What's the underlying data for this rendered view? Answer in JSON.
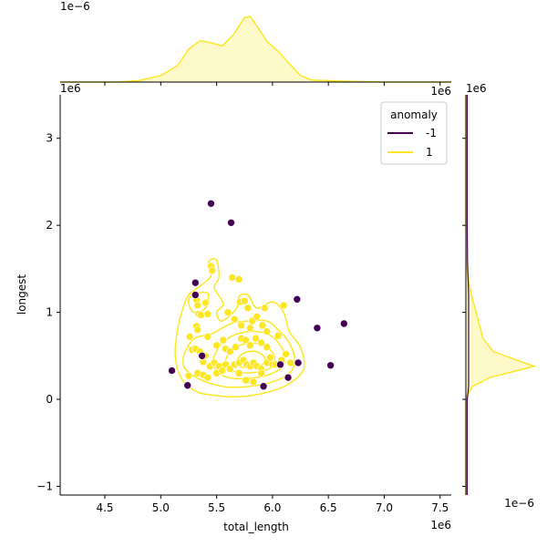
{
  "chart_data": {
    "type": "scatter",
    "title": "",
    "xlabel": "total_length",
    "ylabel": "longest",
    "x_offset_label": "1e6",
    "y_offset_label": "1e6",
    "xlim": [
      4.1,
      7.6
    ],
    "ylim": [
      -1.1,
      3.5
    ],
    "xticks": [
      "4.5",
      "5.0",
      "5.5",
      "6.0",
      "6.5",
      "7.0",
      "7.5"
    ],
    "yticks": [
      "−1",
      "0",
      "1",
      "2",
      "3"
    ],
    "top_marginal": {
      "type": "kde",
      "offset_label": "1e−6",
      "axis_offset_label": "1e6",
      "curve": [
        [
          4.1,
          0
        ],
        [
          4.6,
          0
        ],
        [
          4.8,
          0.02
        ],
        [
          5.0,
          0.1
        ],
        [
          5.15,
          0.25
        ],
        [
          5.25,
          0.5
        ],
        [
          5.35,
          0.63
        ],
        [
          5.45,
          0.6
        ],
        [
          5.55,
          0.55
        ],
        [
          5.65,
          0.72
        ],
        [
          5.75,
          0.98
        ],
        [
          5.8,
          1.0
        ],
        [
          5.85,
          0.88
        ],
        [
          5.95,
          0.62
        ],
        [
          6.05,
          0.47
        ],
        [
          6.15,
          0.28
        ],
        [
          6.25,
          0.1
        ],
        [
          6.35,
          0.03
        ],
        [
          6.5,
          0.02
        ],
        [
          6.7,
          0.01
        ],
        [
          7.0,
          0
        ],
        [
          7.6,
          0
        ]
      ]
    },
    "right_marginal": {
      "type": "kde",
      "offset_label": "1e6",
      "axis_offset_label": "1e−6",
      "curve": [
        [
          -1.1,
          0
        ],
        [
          0.0,
          0
        ],
        [
          0.05,
          0.02
        ],
        [
          0.15,
          0.1
        ],
        [
          0.25,
          0.35
        ],
        [
          0.32,
          0.7
        ],
        [
          0.38,
          1.0
        ],
        [
          0.45,
          0.75
        ],
        [
          0.55,
          0.4
        ],
        [
          0.7,
          0.25
        ],
        [
          0.85,
          0.2
        ],
        [
          1.0,
          0.15
        ],
        [
          1.2,
          0.08
        ],
        [
          1.4,
          0.03
        ],
        [
          1.6,
          0.01
        ],
        [
          2.0,
          0
        ],
        [
          3.5,
          0
        ]
      ]
    },
    "legend": {
      "title": "anomaly",
      "position": "top-right",
      "items": [
        {
          "label": "-1",
          "color": "#440154"
        },
        {
          "label": "1",
          "color": "#fde725"
        }
      ]
    },
    "series": [
      {
        "name": "-1",
        "color": "#440154",
        "points": [
          [
            5.45,
            2.25
          ],
          [
            5.63,
            2.03
          ],
          [
            5.31,
            1.34
          ],
          [
            5.31,
            1.2
          ],
          [
            6.22,
            1.15
          ],
          [
            6.4,
            0.82
          ],
          [
            6.64,
            0.87
          ],
          [
            5.1,
            0.33
          ],
          [
            5.24,
            0.16
          ],
          [
            5.92,
            0.15
          ],
          [
            6.14,
            0.25
          ],
          [
            6.23,
            0.42
          ],
          [
            6.52,
            0.39
          ],
          [
            6.07,
            0.4
          ],
          [
            5.37,
            0.5
          ]
        ]
      },
      {
        "name": "1",
        "color": "#fde725",
        "points": [
          [
            5.45,
            1.53
          ],
          [
            5.46,
            1.48
          ],
          [
            5.32,
            1.14
          ],
          [
            5.33,
            1.08
          ],
          [
            5.34,
            0.98
          ],
          [
            5.36,
            0.97
          ],
          [
            5.4,
            1.11
          ],
          [
            5.42,
            0.98
          ],
          [
            5.64,
            1.4
          ],
          [
            5.7,
            1.38
          ],
          [
            5.71,
            1.12
          ],
          [
            5.75,
            1.13
          ],
          [
            5.78,
            1.05
          ],
          [
            5.82,
            0.9
          ],
          [
            5.86,
            0.95
          ],
          [
            5.93,
            1.05
          ],
          [
            6.1,
            1.08
          ],
          [
            5.6,
            1.0
          ],
          [
            5.66,
            0.92
          ],
          [
            5.72,
            0.85
          ],
          [
            5.8,
            0.82
          ],
          [
            5.91,
            0.85
          ],
          [
            5.95,
            0.78
          ],
          [
            6.05,
            0.73
          ],
          [
            5.32,
            0.84
          ],
          [
            5.33,
            0.8
          ],
          [
            5.26,
            0.72
          ],
          [
            5.42,
            0.72
          ],
          [
            5.5,
            0.62
          ],
          [
            5.56,
            0.68
          ],
          [
            5.58,
            0.58
          ],
          [
            5.62,
            0.55
          ],
          [
            5.67,
            0.6
          ],
          [
            5.72,
            0.7
          ],
          [
            5.76,
            0.68
          ],
          [
            5.8,
            0.62
          ],
          [
            5.85,
            0.7
          ],
          [
            5.9,
            0.65
          ],
          [
            5.95,
            0.6
          ],
          [
            5.28,
            0.57
          ],
          [
            5.31,
            0.58
          ],
          [
            5.35,
            0.55
          ],
          [
            5.38,
            0.43
          ],
          [
            5.4,
            0.5
          ],
          [
            5.44,
            0.38
          ],
          [
            5.48,
            0.42
          ],
          [
            5.52,
            0.38
          ],
          [
            5.54,
            0.32
          ],
          [
            5.58,
            0.4
          ],
          [
            5.62,
            0.35
          ],
          [
            5.66,
            0.4
          ],
          [
            5.7,
            0.42
          ],
          [
            5.74,
            0.45
          ],
          [
            5.77,
            0.4
          ],
          [
            5.8,
            0.38
          ],
          [
            5.83,
            0.42
          ],
          [
            5.86,
            0.38
          ],
          [
            5.9,
            0.35
          ],
          [
            5.95,
            0.42
          ],
          [
            5.98,
            0.48
          ],
          [
            6.0,
            0.4
          ],
          [
            6.03,
            0.4
          ],
          [
            6.08,
            0.45
          ],
          [
            6.12,
            0.52
          ],
          [
            6.16,
            0.42
          ],
          [
            5.25,
            0.27
          ],
          [
            5.33,
            0.3
          ],
          [
            5.38,
            0.28
          ],
          [
            5.42,
            0.25
          ],
          [
            5.5,
            0.3
          ],
          [
            5.55,
            0.33
          ],
          [
            5.7,
            0.3
          ],
          [
            5.78,
            0.22
          ],
          [
            5.83,
            0.2
          ],
          [
            5.76,
            0.22
          ],
          [
            5.9,
            0.3
          ]
        ]
      }
    ],
    "kde_contours": [
      [
        [
          5.25,
          1.2
        ],
        [
          5.35,
          1.3
        ],
        [
          5.45,
          1.42
        ],
        [
          5.43,
          1.58
        ],
        [
          5.5,
          1.6
        ],
        [
          5.52,
          1.4
        ],
        [
          5.48,
          1.28
        ],
        [
          5.56,
          1.1
        ],
        [
          5.5,
          1.0
        ],
        [
          5.55,
          0.9
        ],
        [
          5.68,
          1.05
        ],
        [
          5.7,
          1.18
        ],
        [
          5.78,
          1.2
        ],
        [
          5.86,
          1.05
        ],
        [
          6.0,
          1.12
        ],
        [
          6.1,
          1.0
        ],
        [
          6.15,
          0.78
        ],
        [
          6.25,
          0.6
        ],
        [
          6.28,
          0.35
        ],
        [
          6.15,
          0.18
        ],
        [
          5.95,
          0.08
        ],
        [
          5.7,
          0.03
        ],
        [
          5.45,
          0.05
        ],
        [
          5.3,
          0.1
        ],
        [
          5.18,
          0.25
        ],
        [
          5.13,
          0.5
        ],
        [
          5.15,
          0.8
        ],
        [
          5.2,
          1.05
        ]
      ],
      [
        [
          5.22,
          0.55
        ],
        [
          5.3,
          0.7
        ],
        [
          5.45,
          0.75
        ],
        [
          5.55,
          0.82
        ],
        [
          5.65,
          0.88
        ],
        [
          5.8,
          0.9
        ],
        [
          5.95,
          0.9
        ],
        [
          6.05,
          0.8
        ],
        [
          6.15,
          0.65
        ],
        [
          6.2,
          0.45
        ],
        [
          6.15,
          0.3
        ],
        [
          6.0,
          0.2
        ],
        [
          5.8,
          0.15
        ],
        [
          5.6,
          0.14
        ],
        [
          5.45,
          0.18
        ],
        [
          5.32,
          0.25
        ],
        [
          5.22,
          0.35
        ],
        [
          5.2,
          0.45
        ]
      ],
      [
        [
          5.48,
          0.5
        ],
        [
          5.55,
          0.65
        ],
        [
          5.68,
          0.75
        ],
        [
          5.85,
          0.78
        ],
        [
          6.0,
          0.72
        ],
        [
          6.1,
          0.55
        ],
        [
          6.1,
          0.4
        ],
        [
          6.0,
          0.3
        ],
        [
          5.85,
          0.25
        ],
        [
          5.65,
          0.24
        ],
        [
          5.52,
          0.3
        ],
        [
          5.47,
          0.4
        ]
      ],
      [
        [
          5.58,
          0.45
        ],
        [
          5.65,
          0.58
        ],
        [
          5.8,
          0.65
        ],
        [
          5.95,
          0.6
        ],
        [
          6.02,
          0.48
        ],
        [
          5.98,
          0.36
        ],
        [
          5.85,
          0.31
        ],
        [
          5.7,
          0.31
        ],
        [
          5.6,
          0.36
        ]
      ],
      [
        [
          5.68,
          0.44
        ],
        [
          5.74,
          0.53
        ],
        [
          5.85,
          0.55
        ],
        [
          5.93,
          0.48
        ],
        [
          5.9,
          0.39
        ],
        [
          5.8,
          0.36
        ],
        [
          5.71,
          0.38
        ]
      ],
      [
        [
          5.28,
          1.2
        ],
        [
          5.42,
          1.22
        ],
        [
          5.4,
          1.05
        ],
        [
          5.3,
          1.0
        ],
        [
          5.25,
          1.1
        ]
      ]
    ]
  }
}
